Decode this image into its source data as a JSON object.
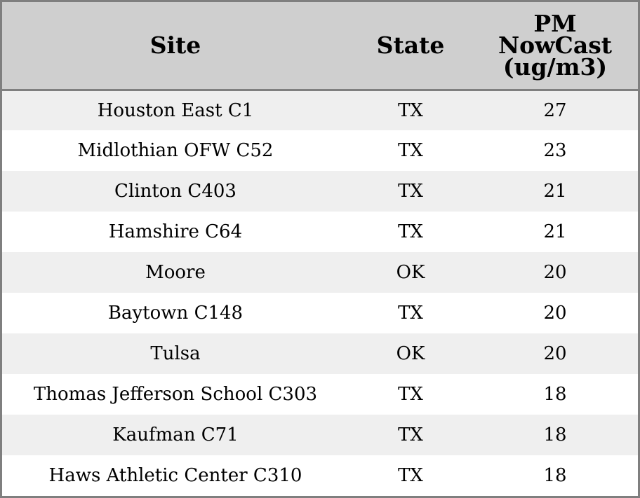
{
  "table": {
    "headers": {
      "site": "Site",
      "state": "State",
      "pm_line1": "PM",
      "pm_line2": "NowCast",
      "pm_line3": "(ug/m3)"
    },
    "rows": [
      {
        "site": "Houston East C1",
        "state": "TX",
        "pm": "27"
      },
      {
        "site": "Midlothian OFW C52",
        "state": "TX",
        "pm": "23"
      },
      {
        "site": "Clinton C403",
        "state": "TX",
        "pm": "21"
      },
      {
        "site": "Hamshire C64",
        "state": "TX",
        "pm": "21"
      },
      {
        "site": "Moore",
        "state": "OK",
        "pm": "20"
      },
      {
        "site": "Baytown C148",
        "state": "TX",
        "pm": "20"
      },
      {
        "site": "Tulsa",
        "state": "OK",
        "pm": "20"
      },
      {
        "site": "Thomas Jefferson School C303",
        "state": "TX",
        "pm": "18"
      },
      {
        "site": "Kaufman C71",
        "state": "TX",
        "pm": "18"
      },
      {
        "site": "Haws Athletic Center C310",
        "state": "TX",
        "pm": "18"
      }
    ]
  },
  "colors": {
    "header_bg": "#cfcfcf",
    "row_stripe": "#efefef",
    "row_plain": "#ffffff",
    "border": "#7f7f7f"
  }
}
